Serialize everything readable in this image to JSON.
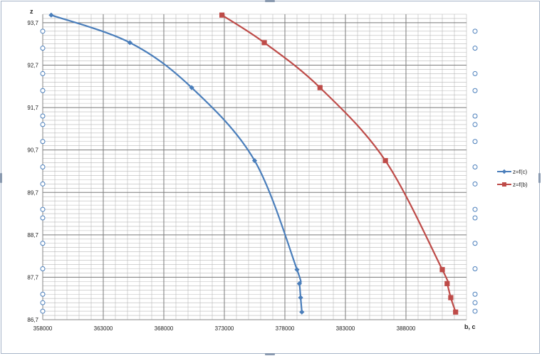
{
  "chart_data": {
    "type": "scatter",
    "title": "",
    "xlabel": "b, c",
    "ylabel": "z",
    "xlim": [
      358000,
      393000
    ],
    "ylim": [
      86.7,
      93.9
    ],
    "x_ticks": [
      358000,
      363000,
      368000,
      373000,
      378000,
      383000,
      388000
    ],
    "x_tick_labels": [
      "358000",
      "363000",
      "368000",
      "373000",
      "378000",
      "383000",
      "388000"
    ],
    "y_ticks": [
      86.7,
      87.7,
      88.7,
      89.7,
      90.7,
      91.7,
      92.7,
      93.7
    ],
    "y_tick_labels": [
      "86,7",
      "87,7",
      "88,7",
      "89,7",
      "90,7",
      "91,7",
      "92,7",
      "93,7"
    ],
    "grid": true,
    "legend_position": "right",
    "colors": {
      "series1": "#4a7ebb",
      "series2": "#be4b48",
      "grid": "#8c8c8c",
      "axis": "#868686",
      "side_marker": "#4a7ebb"
    },
    "series": [
      {
        "name": "z=f(c)",
        "marker": "diamond",
        "color": "#4a7ebb",
        "points": [
          [
            358700,
            93.88
          ],
          [
            365200,
            93.23
          ],
          [
            370300,
            92.17
          ],
          [
            375500,
            90.45
          ],
          [
            379000,
            87.88
          ],
          [
            379200,
            87.55
          ],
          [
            379300,
            87.22
          ],
          [
            379400,
            86.88
          ]
        ]
      },
      {
        "name": "z=f(b)",
        "marker": "square",
        "color": "#be4b48",
        "points": [
          [
            372800,
            93.88
          ],
          [
            376300,
            93.23
          ],
          [
            380900,
            92.17
          ],
          [
            386300,
            90.45
          ],
          [
            391000,
            87.88
          ],
          [
            391400,
            87.55
          ],
          [
            391700,
            87.22
          ],
          [
            392100,
            86.88
          ]
        ]
      }
    ],
    "side_marker_values": [
      93.5,
      93.1,
      92.5,
      92.1,
      91.5,
      91.3,
      90.9,
      90.3,
      89.9,
      89.3,
      89.1,
      88.5,
      87.9,
      87.3,
      87.1,
      86.9
    ]
  }
}
